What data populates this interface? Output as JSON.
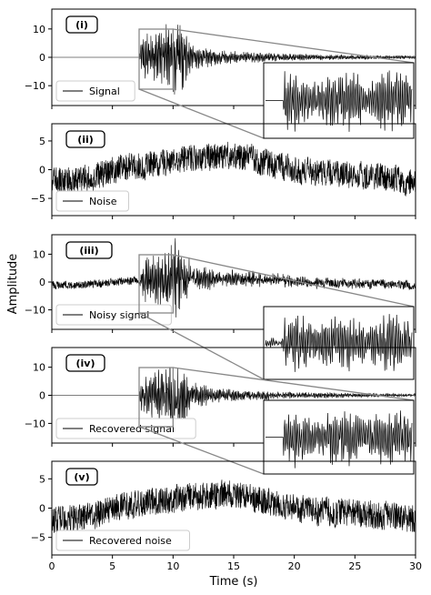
{
  "chart_data": {
    "type": "line",
    "xlabel": "Time (s)",
    "ylabel": "Amplitude",
    "x_ticks": [
      0,
      5,
      10,
      15,
      20,
      25,
      30
    ],
    "xlim": [
      0,
      30
    ],
    "zoom_window": {
      "xlim": [
        7.2,
        10.0
      ]
    },
    "panels": [
      {
        "id": "i",
        "tag": "(i)",
        "legend": "Signal",
        "legend_position": "lower-left",
        "ylim": [
          -17,
          17
        ],
        "y_ticks": [
          -10,
          0,
          10
        ],
        "kind": "signal",
        "has_inset": true,
        "envelope_points": [
          [
            0,
            0
          ],
          [
            7.2,
            0
          ],
          [
            7.5,
            9
          ],
          [
            8.5,
            9
          ],
          [
            9.8,
            14
          ],
          [
            10.5,
            15
          ],
          [
            11.5,
            5
          ],
          [
            14,
            2.5
          ],
          [
            20,
            1.2
          ],
          [
            25,
            0.8
          ],
          [
            30,
            0.6
          ]
        ]
      },
      {
        "id": "ii",
        "tag": "(ii)",
        "legend": "Noise",
        "legend_position": "lower-left",
        "ylim": [
          -8,
          8
        ],
        "y_ticks": [
          -5,
          0,
          5
        ],
        "kind": "noise",
        "has_inset": false,
        "trend_points": [
          [
            0,
            -2
          ],
          [
            3,
            -1.5
          ],
          [
            6,
            0.5
          ],
          [
            10,
            1.5
          ],
          [
            15,
            2.5
          ],
          [
            18,
            1
          ],
          [
            22,
            -0.5
          ],
          [
            26,
            -1
          ],
          [
            30,
            -2
          ]
        ]
      },
      {
        "id": "iii",
        "tag": "(iii)",
        "legend": "Noisy signal",
        "legend_position": "lower-left",
        "ylim": [
          -17,
          17
        ],
        "y_ticks": [
          -10,
          0,
          10
        ],
        "kind": "noisy",
        "has_inset": true
      },
      {
        "id": "iv",
        "tag": "(iv)",
        "legend": "Recovered signal",
        "legend_position": "lower-left",
        "ylim": [
          -17,
          17
        ],
        "y_ticks": [
          -10,
          0,
          10
        ],
        "kind": "signal",
        "has_inset": true
      },
      {
        "id": "v",
        "tag": "(v)",
        "legend": "Recovered noise",
        "legend_position": "lower-left",
        "ylim": [
          -8,
          8
        ],
        "y_ticks": [
          -5,
          0,
          5
        ],
        "kind": "noise",
        "has_inset": false
      }
    ]
  },
  "colors": {
    "trace": "#000000",
    "zoom_box": "#888888",
    "axis": "#000000"
  }
}
